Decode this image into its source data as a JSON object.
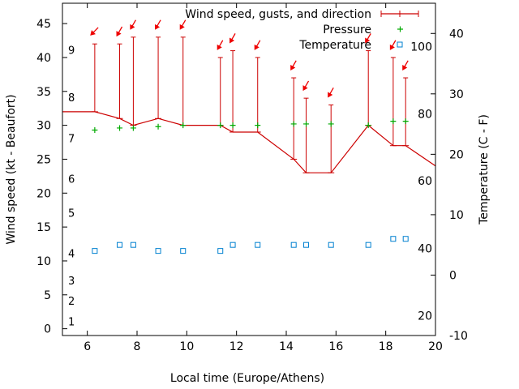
{
  "colors": {
    "wind": "#cc0000",
    "arrow": "#ee0000",
    "pressure": "#00aa00",
    "temperature": "#0080d0",
    "axis": "#000000"
  },
  "chart_data": {
    "type": "line",
    "title": "",
    "xlabel": "Local time (Europe/Athens)",
    "ylabel": "Wind speed (kt - Beaufort)",
    "y2label": "Temperature (C - F)",
    "xlim": [
      5,
      20
    ],
    "ylim": [
      -1,
      48
    ],
    "y2lim": [
      -10,
      45
    ],
    "x_ticks": [
      6,
      8,
      10,
      12,
      14,
      16,
      18,
      20
    ],
    "y_ticks": [
      0,
      5,
      10,
      15,
      20,
      25,
      30,
      35,
      40,
      45
    ],
    "y2_celsius_ticks": [
      -10,
      0,
      10,
      20,
      30,
      40
    ],
    "y2_fahrenheit_ticks": [
      {
        "label": "20",
        "celsius": -6.7
      },
      {
        "label": "40",
        "celsius": 4.4
      },
      {
        "label": "60",
        "celsius": 15.6
      },
      {
        "label": "80",
        "celsius": 26.7
      },
      {
        "label": "100",
        "celsius": 37.8
      }
    ],
    "beaufort_labels": [
      {
        "label": "1",
        "knots": 1
      },
      {
        "label": "2",
        "knots": 4
      },
      {
        "label": "3",
        "knots": 7
      },
      {
        "label": "4",
        "knots": 11
      },
      {
        "label": "5",
        "knots": 17
      },
      {
        "label": "6",
        "knots": 22
      },
      {
        "label": "7",
        "knots": 28
      },
      {
        "label": "8",
        "knots": 34
      },
      {
        "label": "9",
        "knots": 41
      }
    ],
    "legend_position": "top-right",
    "series": [
      {
        "name": "Wind speed, gusts, and direction",
        "axis": "left",
        "style": "line-with-gust-bars",
        "x": [
          5,
          6.3,
          7.3,
          7.85,
          8.85,
          9.85,
          11.35,
          11.85,
          12.85,
          14.3,
          14.8,
          15.8,
          17.3,
          18.3,
          18.8,
          20
        ],
        "values": [
          32,
          32,
          31,
          30,
          31,
          30,
          30,
          29,
          29,
          25,
          23,
          23,
          30,
          27,
          27,
          24
        ],
        "gusts": [
          null,
          42,
          42,
          43,
          43,
          43,
          40,
          41,
          40,
          37,
          34,
          33,
          41,
          40,
          37,
          null
        ]
      },
      {
        "name": "Pressure",
        "axis": "left",
        "style": "points-plus",
        "x": [
          6.3,
          7.3,
          7.85,
          8.85,
          9.85,
          11.35,
          11.85,
          12.85,
          14.3,
          14.8,
          15.8,
          17.3,
          18.3,
          18.8
        ],
        "values": [
          29.3,
          29.6,
          29.6,
          29.8,
          30.0,
          30.0,
          30.0,
          30.0,
          30.2,
          30.2,
          30.2,
          30.0,
          30.6,
          30.6
        ]
      },
      {
        "name": "Temperature",
        "axis": "right",
        "style": "points-square",
        "x": [
          6.3,
          7.3,
          7.85,
          8.85,
          9.85,
          11.35,
          11.85,
          12.85,
          14.3,
          14.8,
          15.8,
          17.3,
          18.3,
          18.8
        ],
        "values": [
          4,
          5,
          5,
          4,
          4,
          4,
          5,
          5,
          5,
          5,
          5,
          5,
          6,
          6
        ]
      }
    ],
    "direction_arrows": [
      {
        "x": 6.3,
        "angle": 45
      },
      {
        "x": 7.3,
        "angle": 30
      },
      {
        "x": 7.85,
        "angle": 30
      },
      {
        "x": 8.85,
        "angle": 30
      },
      {
        "x": 9.85,
        "angle": 30
      },
      {
        "x": 11.35,
        "angle": 30
      },
      {
        "x": 11.85,
        "angle": 30
      },
      {
        "x": 12.85,
        "angle": 30
      },
      {
        "x": 14.3,
        "angle": 30
      },
      {
        "x": 14.8,
        "angle": 30
      },
      {
        "x": 15.8,
        "angle": 30
      },
      {
        "x": 17.3,
        "angle": 30
      },
      {
        "x": 18.3,
        "angle": 30
      },
      {
        "x": 18.8,
        "angle": 30
      }
    ]
  }
}
